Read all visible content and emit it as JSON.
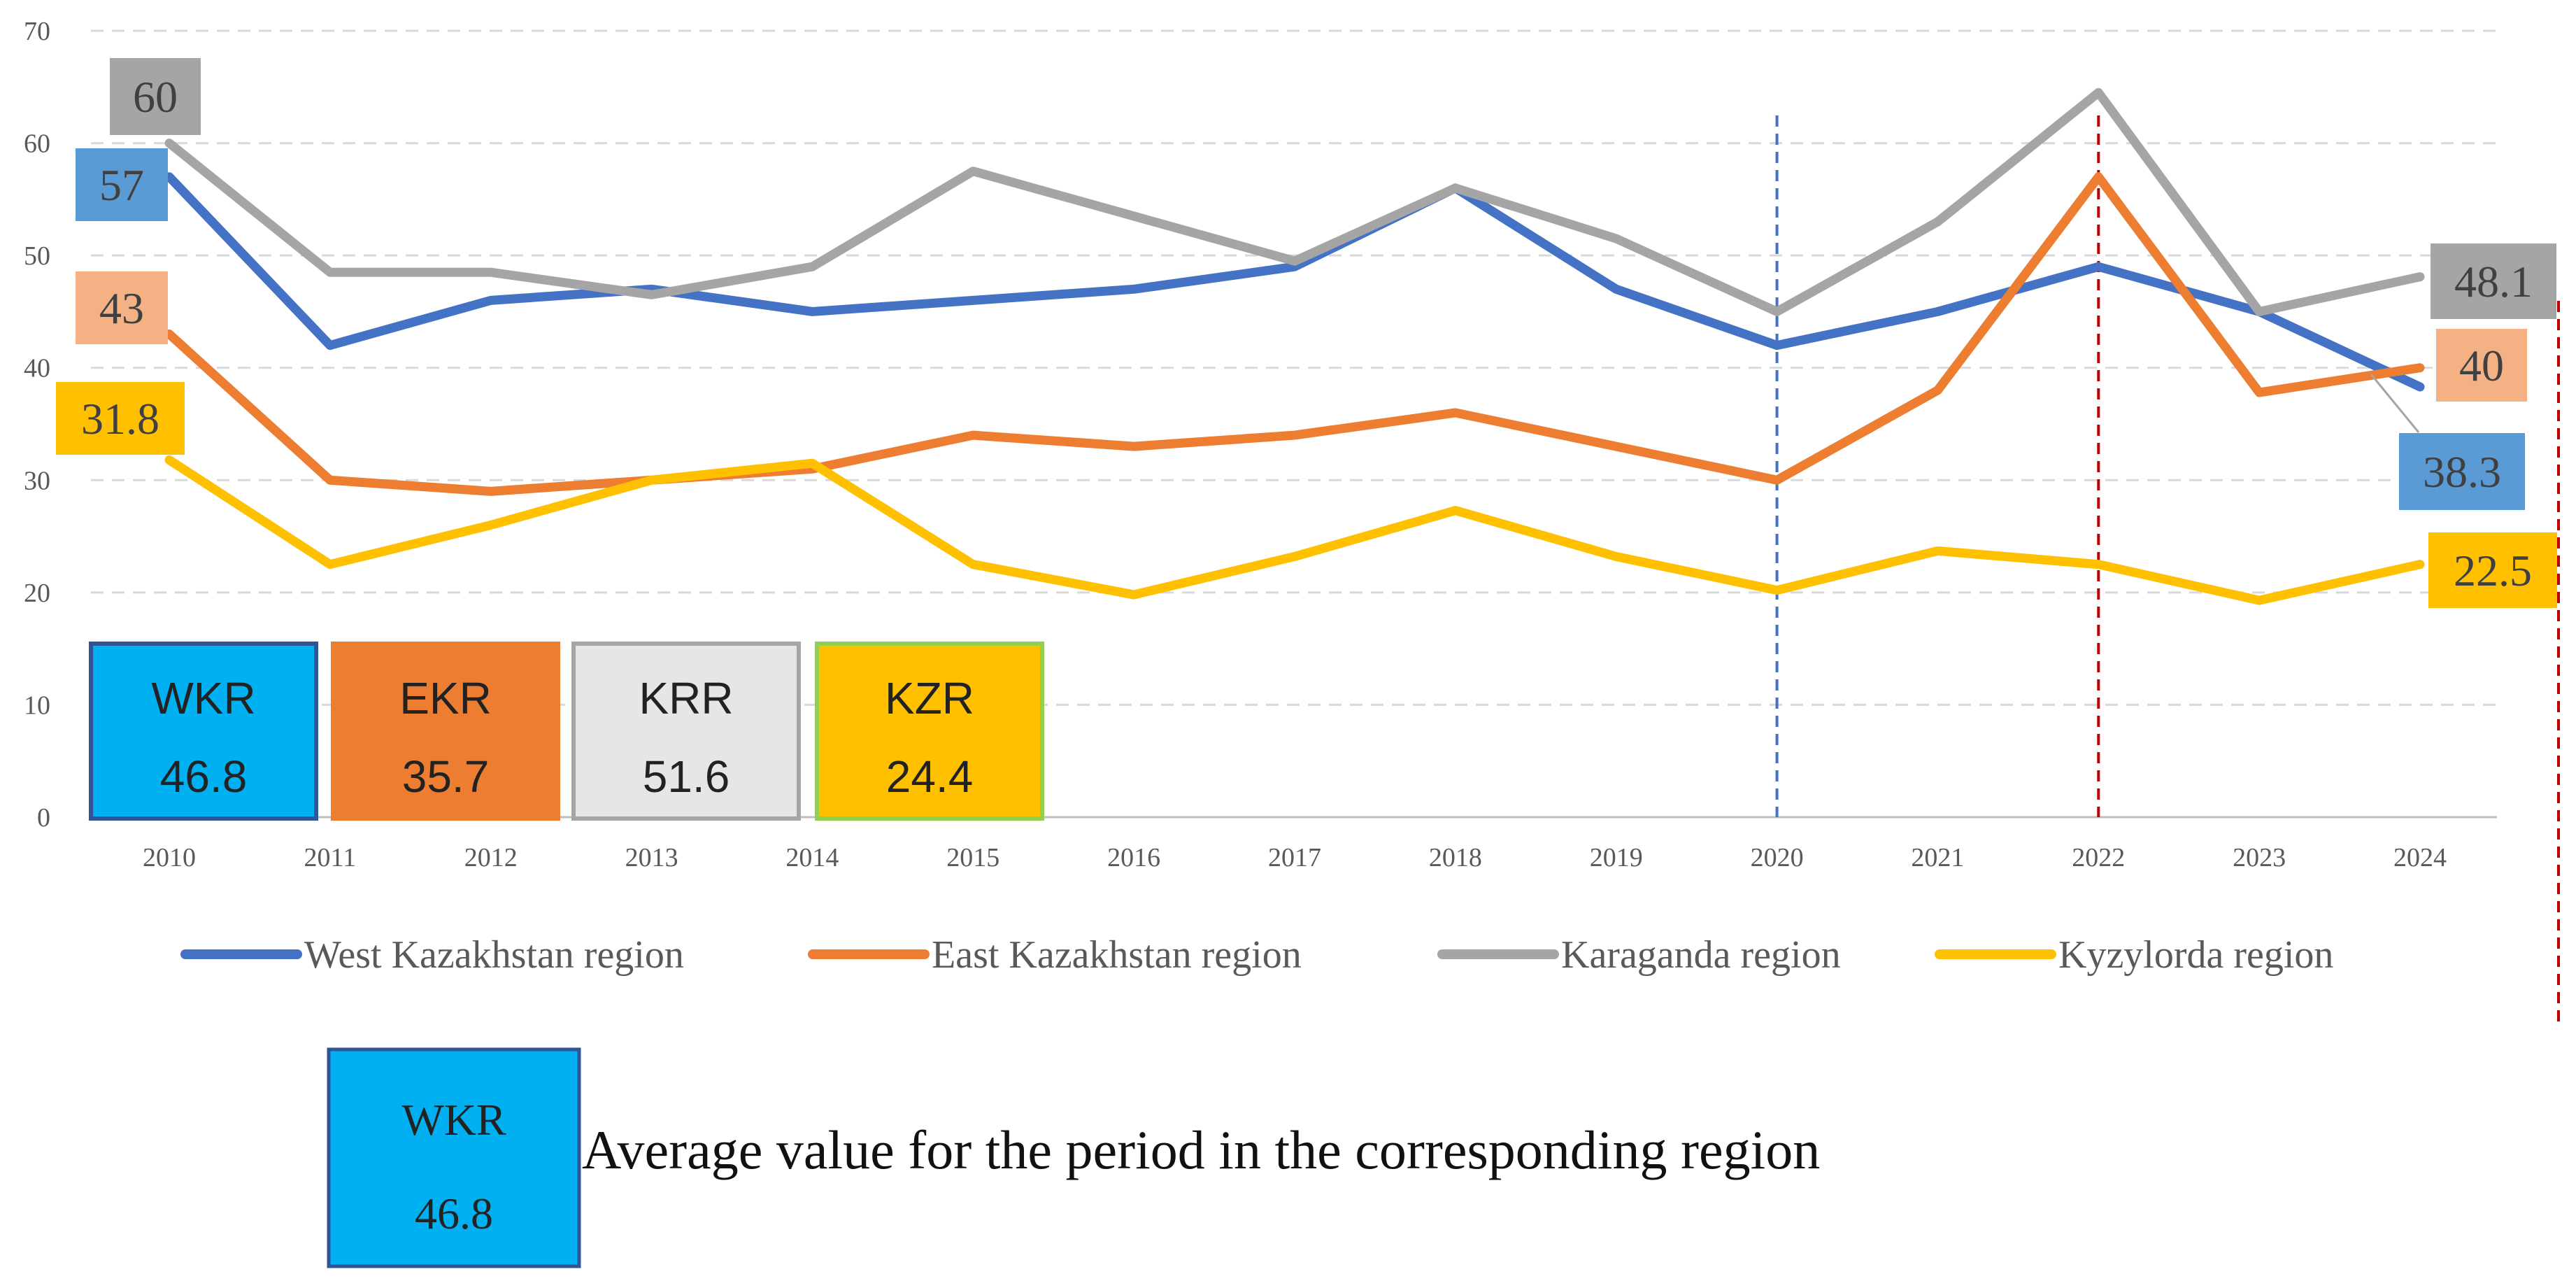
{
  "chart_data": {
    "type": "line",
    "title": "",
    "xlabel": "",
    "ylabel": "",
    "ylim": [
      0,
      70
    ],
    "yticks": [
      0,
      10,
      20,
      30,
      40,
      50,
      60,
      70
    ],
    "grid": true,
    "legend_position": "bottom",
    "x": [
      2010,
      2011,
      2012,
      2013,
      2014,
      2015,
      2016,
      2017,
      2018,
      2019,
      2020,
      2021,
      2022,
      2023,
      2024
    ],
    "series": [
      {
        "name": "West Kazakhstan region",
        "color": "#4472C4",
        "values": [
          57,
          42,
          46,
          47,
          45,
          46,
          47,
          49,
          56,
          47,
          42,
          45,
          49,
          45,
          38.3
        ]
      },
      {
        "name": "East Kazakhstan region",
        "color": "#ED7D31",
        "values": [
          43,
          30,
          29,
          30,
          31,
          34,
          33,
          34,
          36,
          33,
          30,
          38,
          57,
          37.8,
          40
        ]
      },
      {
        "name": "Karaganda region",
        "color": "#A5A5A5",
        "values": [
          60,
          48.5,
          48.5,
          46.5,
          49,
          57.5,
          53.5,
          49.5,
          56,
          51.5,
          45,
          53,
          64.5,
          45,
          48.1
        ]
      },
      {
        "name": "Kyzylorda region",
        "color": "#FFC000",
        "values": [
          31.8,
          22.5,
          26,
          30,
          31.5,
          22.5,
          19.8,
          23.2,
          27.3,
          23.2,
          20.2,
          23.7,
          22.5,
          19.3,
          22.5
        ]
      }
    ],
    "point_labels": [
      {
        "series": "Karaganda region",
        "x": 2010,
        "text": "60",
        "bg": "#A5A5A5"
      },
      {
        "series": "West Kazakhstan region",
        "x": 2010,
        "text": "57",
        "bg": "#5B9BD5"
      },
      {
        "series": "East Kazakhstan region",
        "x": 2010,
        "text": "43",
        "bg": "#F4B183"
      },
      {
        "series": "Kyzylorda region",
        "x": 2010,
        "text": "31.8",
        "bg": "#FFC000"
      },
      {
        "series": "Karaganda region",
        "x": 2024,
        "text": "48.1",
        "bg": "#A5A5A5"
      },
      {
        "series": "East Kazakhstan region",
        "x": 2024,
        "text": "40",
        "bg": "#F4B183"
      },
      {
        "series": "West Kazakhstan region",
        "x": 2024,
        "text": "38.3",
        "bg": "#5B9BD5"
      },
      {
        "series": "Kyzylorda region",
        "x": 2024,
        "text": "22.5",
        "bg": "#FFC000"
      }
    ],
    "vertical_markers": [
      {
        "x": 2020,
        "color": "#4472C4"
      },
      {
        "x": 2022,
        "color": "#C00000"
      }
    ],
    "averages": [
      {
        "code": "WKR",
        "value": "46.8",
        "bg": "#00B0F0",
        "border": "#2F5597"
      },
      {
        "code": "EKR",
        "value": "35.7",
        "bg": "#ED7D31",
        "border": "#ED7D31"
      },
      {
        "code": "KRR",
        "value": "51.6",
        "bg": "#E7E6E6",
        "border": "#A5A5A5"
      },
      {
        "code": "KZR",
        "value": "24.4",
        "bg": "#FFC000",
        "border": "#92D050"
      }
    ]
  },
  "note": {
    "code": "WKR",
    "value": "46.8",
    "text": "Average value for the period in the corresponding region"
  }
}
